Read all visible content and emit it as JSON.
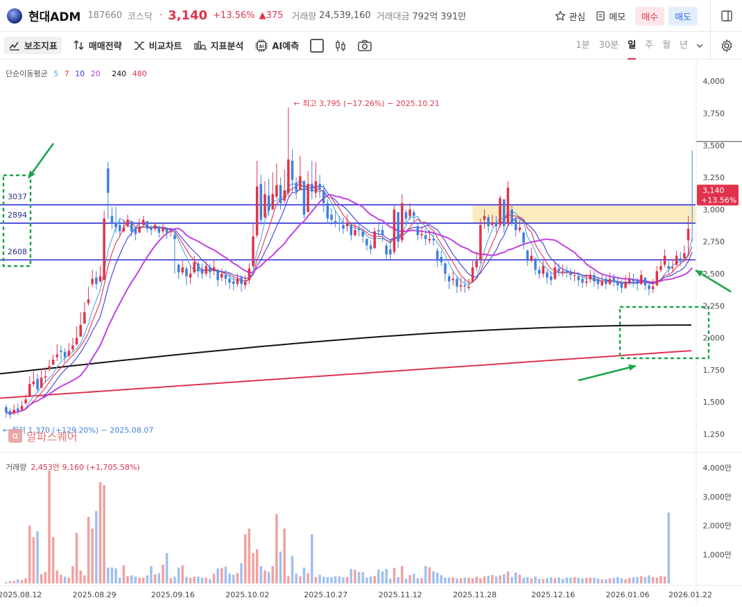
{
  "header": {
    "name": "현대ADM",
    "code": "187660",
    "market": "코스닥",
    "sep": "·",
    "price": "3,140",
    "change_pct": "+13.56%",
    "change_abs": "▲375",
    "volume_label": "거래량",
    "volume_value": "24,539,160",
    "value_label": "거래대금",
    "value_value": "792억 391만",
    "watch_label": "관심",
    "memo_label": "메모",
    "buy_label": "매수",
    "sell_label": "매도"
  },
  "toolbar": {
    "items": [
      "보조지표",
      "매매전략",
      "비교차트",
      "지표분석",
      "AI예측"
    ],
    "periods": [
      "1분",
      "30분",
      "일",
      "주",
      "월",
      "년"
    ],
    "active_period": "일"
  },
  "ma_legend": {
    "label": "단순이동평균",
    "items": [
      {
        "label": "5",
        "color": "#4aa8e0"
      },
      {
        "label": "7",
        "color": "#e0324b"
      },
      {
        "label": "10",
        "color": "#3a3adf"
      },
      {
        "label": "20",
        "color": "#c040e0"
      },
      {
        "label": "240",
        "color": "#111111"
      },
      {
        "label": "480",
        "color": "#e0324b"
      }
    ]
  },
  "volume_legend": {
    "label": "거래량",
    "value": "2,453만 9,160 (+1,705.58%)"
  },
  "watermark": "알파스퀘어",
  "watermark_icon": "α",
  "colors": {
    "up": "#e0324b",
    "down": "#3f7fe0",
    "vol_up": "#f2a0a0",
    "vol_down": "#9fc0f0",
    "hline": "#2a2ad6",
    "annotation": "#1aa34a",
    "zone": "#fbe9b8"
  },
  "chart_data": [
    {
      "type": "candlestick",
      "title": "",
      "x": [
        "2025.08.12",
        "2025.08.29",
        "2025.09.16",
        "2025.10.02",
        "2025.10.27",
        "2025.11.12",
        "2025.11.28",
        "2025.12.16",
        "2026.01.06",
        "2026.01.22"
      ],
      "y_ticks": [
        4000,
        3750,
        3500,
        3250,
        3000,
        2750,
        2500,
        2250,
        2000,
        1750,
        1500,
        1250
      ],
      "ylim": [
        1150,
        4120
      ],
      "price_levels": [
        3037,
        2894,
        2608
      ],
      "high_annotation": "최고 3,795 (−17.26%) − 2025.10.21",
      "low_annotation": "최저 1,370 (+129.20%) − 2025.08.07",
      "last_price_tag": "3,140",
      "last_change_tag": "+13.56%",
      "ma240_start": 1720,
      "ma240_end": 2100,
      "ma480_start": 1530,
      "ma480_end": 1900,
      "closes": [
        1420,
        1400,
        1440,
        1430,
        1470,
        1520,
        1640,
        1660,
        1600,
        1690,
        1700,
        1780,
        1830,
        1870,
        1890,
        1850,
        1900,
        1940,
        2000,
        2100,
        2200,
        2300,
        2460,
        2420,
        2480,
        2930,
        3130,
        2900,
        2860,
        2830,
        2860,
        2920,
        2830,
        2810,
        2870,
        2920,
        2850,
        2840,
        2880,
        2820,
        2860,
        2820,
        2830,
        2770,
        2510,
        2550,
        2480,
        2500,
        2590,
        2520,
        2500,
        2560,
        2510,
        2550,
        2450,
        2500,
        2460,
        2430,
        2420,
        2460,
        2420,
        2440,
        2540,
        2790,
        3180,
        2920,
        3120,
        2990,
        3120,
        3190,
        3050,
        3150,
        3390,
        3230,
        3140,
        3260,
        2960,
        3200,
        3140,
        3220,
        3160,
        3050,
        2930,
        2920,
        2900,
        2890,
        2850,
        2900,
        2800,
        2840,
        2840,
        2790,
        2720,
        2690,
        2830,
        2830,
        2800,
        2650,
        2650,
        3000,
        2750,
        3050,
        2930,
        3000,
        2950,
        2800,
        2810,
        2770,
        2770,
        2760,
        2600,
        2590,
        2500,
        2440,
        2460,
        2400,
        2410,
        2400,
        2400,
        2550,
        2600,
        2880,
        2950,
        2870,
        2900,
        2870,
        3090,
        2870,
        3170,
        2900,
        2840,
        2860,
        2740,
        2600,
        2640,
        2530,
        2500,
        2560,
        2470,
        2450,
        2550,
        2520,
        2520,
        2510,
        2490,
        2490,
        2450,
        2430,
        2440,
        2490,
        2440,
        2420,
        2440,
        2420,
        2460,
        2440,
        2410,
        2390,
        2430,
        2460,
        2440,
        2420,
        2490,
        2410,
        2380,
        2400,
        2520,
        2560,
        2640,
        2540,
        2550,
        2640,
        2600,
        2660,
        2850,
        3140
      ],
      "highs": [
        1480,
        1450,
        1480,
        1490,
        1510,
        1560,
        1700,
        1740,
        1720,
        1760,
        1770,
        1830,
        1870,
        1950,
        1940,
        1920,
        1960,
        2000,
        2090,
        2200,
        2280,
        2400,
        2530,
        2520,
        2560,
        2990,
        3370,
        3020,
        3020,
        2920,
        2920,
        2960,
        2900,
        2870,
        2930,
        2950,
        2900,
        2880,
        2900,
        2860,
        2900,
        2860,
        2860,
        2830,
        2580,
        2600,
        2560,
        2560,
        2640,
        2600,
        2580,
        2600,
        2580,
        2610,
        2540,
        2540,
        2530,
        2500,
        2480,
        2500,
        2490,
        2490,
        2580,
        2900,
        3380,
        3270,
        3220,
        3240,
        3290,
        3360,
        3250,
        3310,
        3795,
        3470,
        3250,
        3420,
        3230,
        3300,
        3380,
        3370,
        3270,
        3200,
        3080,
        3010,
        2990,
        2950,
        2940,
        2960,
        2890,
        2890,
        2890,
        2850,
        2780,
        2760,
        2860,
        2890,
        2880,
        2740,
        2770,
        3030,
        2880,
        3120,
        3000,
        3050,
        3000,
        2890,
        2870,
        2850,
        2840,
        2820,
        2700,
        2680,
        2590,
        2500,
        2520,
        2480,
        2470,
        2460,
        2460,
        2600,
        2670,
        2930,
        3000,
        2960,
        2960,
        2950,
        3110,
        2990,
        3220,
        3030,
        2930,
        2920,
        2830,
        2690,
        2700,
        2620,
        2560,
        2600,
        2530,
        2520,
        2590,
        2580,
        2570,
        2560,
        2540,
        2530,
        2510,
        2490,
        2500,
        2530,
        2520,
        2480,
        2490,
        2480,
        2510,
        2500,
        2470,
        2450,
        2490,
        2510,
        2500,
        2470,
        2530,
        2470,
        2430,
        2460,
        2560,
        2610,
        2690,
        2600,
        2610,
        2680,
        2670,
        2720,
        2950,
        3460
      ],
      "lows": [
        1380,
        1370,
        1400,
        1400,
        1430,
        1480,
        1600,
        1620,
        1570,
        1650,
        1650,
        1740,
        1790,
        1820,
        1830,
        1810,
        1850,
        1890,
        1940,
        2030,
        2150,
        2250,
        2400,
        2380,
        2430,
        2860,
        2930,
        2850,
        2820,
        2790,
        2820,
        2860,
        2790,
        2760,
        2820,
        2860,
        2820,
        2800,
        2830,
        2780,
        2810,
        2770,
        2790,
        2500,
        2460,
        2490,
        2410,
        2420,
        2500,
        2470,
        2460,
        2480,
        2460,
        2490,
        2400,
        2440,
        2410,
        2380,
        2370,
        2400,
        2360,
        2380,
        2420,
        2550,
        2780,
        2880,
        2930,
        2950,
        3000,
        3080,
        3000,
        3050,
        3100,
        3140,
        3080,
        3150,
        2930,
        3050,
        3080,
        3090,
        3090,
        2980,
        2890,
        2880,
        2860,
        2830,
        2810,
        2830,
        2760,
        2790,
        2790,
        2740,
        2680,
        2650,
        2690,
        2790,
        2750,
        2610,
        2610,
        2650,
        2700,
        2740,
        2880,
        2920,
        2910,
        2760,
        2770,
        2720,
        2730,
        2720,
        2550,
        2560,
        2440,
        2380,
        2410,
        2350,
        2360,
        2350,
        2370,
        2430,
        2520,
        2580,
        2850,
        2820,
        2860,
        2820,
        2860,
        2820,
        2870,
        2870,
        2790,
        2820,
        2690,
        2560,
        2590,
        2490,
        2460,
        2470,
        2420,
        2410,
        2450,
        2480,
        2480,
        2470,
        2450,
        2440,
        2400,
        2390,
        2400,
        2430,
        2400,
        2380,
        2400,
        2380,
        2410,
        2400,
        2370,
        2350,
        2380,
        2410,
        2400,
        2370,
        2410,
        2370,
        2330,
        2350,
        2400,
        2510,
        2550,
        2500,
        2510,
        2560,
        2560,
        2600,
        2640,
        2750
      ],
      "opens": [
        1460,
        1430,
        1410,
        1450,
        1440,
        1490,
        1540,
        1640,
        1680,
        1610,
        1690,
        1760,
        1790,
        1850,
        1900,
        1890,
        1860,
        1910,
        1950,
        2010,
        2110,
        2270,
        2420,
        2470,
        2440,
        2450,
        3320,
        2950,
        2900,
        2880,
        2830,
        2870,
        2910,
        2850,
        2820,
        2880,
        2910,
        2860,
        2850,
        2870,
        2830,
        2850,
        2830,
        2800,
        2570,
        2510,
        2540,
        2470,
        2510,
        2580,
        2540,
        2500,
        2550,
        2520,
        2530,
        2470,
        2490,
        2460,
        2440,
        2420,
        2470,
        2410,
        2450,
        2560,
        2800,
        3200,
        2940,
        3110,
        3000,
        3100,
        3190,
        3070,
        3130,
        3380,
        3210,
        3150,
        3220,
        2980,
        3200,
        3130,
        3200,
        3140,
        3050,
        2960,
        2910,
        2900,
        2880,
        2870,
        2880,
        2800,
        2850,
        2830,
        2770,
        2720,
        2700,
        2840,
        2840,
        2720,
        2690,
        2670,
        2980,
        2760,
        2980,
        2950,
        2980,
        2870,
        2800,
        2800,
        2760,
        2770,
        2680,
        2630,
        2580,
        2480,
        2450,
        2460,
        2400,
        2410,
        2390,
        2440,
        2550,
        2610,
        2920,
        2940,
        2880,
        2900,
        2880,
        3080,
        2890,
        3000,
        2920,
        2840,
        2820,
        2680,
        2600,
        2620,
        2530,
        2500,
        2510,
        2480,
        2460,
        2540,
        2520,
        2520,
        2500,
        2490,
        2480,
        2460,
        2430,
        2460,
        2490,
        2460,
        2410,
        2460,
        2420,
        2470,
        2440,
        2430,
        2390,
        2430,
        2460,
        2450,
        2420,
        2470,
        2410,
        2380,
        2410,
        2530,
        2570,
        2560,
        2540,
        2570,
        2620,
        2620,
        2760
      ]
    },
    {
      "type": "bar",
      "title": "",
      "y_ticks": [
        4000,
        3000,
        2000,
        1000
      ],
      "y_unit": "만",
      "ylim": [
        0,
        4000
      ],
      "values": [
        40,
        80,
        90,
        140,
        110,
        180,
        2000,
        1600,
        1800,
        320,
        400,
        3900,
        1600,
        450,
        300,
        230,
        200,
        600,
        1750,
        450,
        280,
        2300,
        1900,
        2500,
        3500,
        3400,
        550,
        550,
        520,
        200,
        620,
        260,
        280,
        240,
        200,
        200,
        280,
        600,
        320,
        350,
        650,
        1050,
        180,
        230,
        550,
        630,
        230,
        200,
        240,
        240,
        200,
        200,
        150,
        340,
        520,
        540,
        580,
        340,
        300,
        360,
        700,
        1700,
        1900,
        1050,
        1180,
        600,
        450,
        400,
        600,
        2400,
        1100,
        1900,
        250,
        950,
        340,
        250,
        550,
        350,
        1700,
        220,
        300,
        230,
        220,
        220,
        250,
        240,
        210,
        220,
        500,
        480,
        400,
        390,
        200,
        240,
        260,
        480,
        420,
        500,
        160,
        540,
        220,
        600,
        160,
        290,
        330,
        180,
        180,
        600,
        560,
        420,
        370,
        290,
        200,
        200,
        210,
        170,
        180,
        200,
        200,
        180,
        230,
        180,
        240,
        270,
        290,
        240,
        280,
        320,
        410,
        230,
        380,
        300,
        200,
        220,
        180,
        240,
        160,
        150,
        180,
        210,
        180,
        210,
        160,
        210,
        200,
        220,
        200,
        170,
        190,
        200,
        200,
        170,
        140,
        150,
        180,
        200,
        220,
        180,
        140,
        190,
        210,
        220,
        250,
        220,
        280,
        220,
        200,
        250,
        240,
        2450
      ],
      "up": [
        1,
        0,
        1,
        0,
        1,
        1,
        1,
        1,
        0,
        1,
        1,
        1,
        1,
        1,
        1,
        0,
        1,
        1,
        1,
        1,
        1,
        1,
        1,
        0,
        1,
        1,
        0,
        0,
        0,
        0,
        1,
        1,
        0,
        0,
        1,
        1,
        0,
        0,
        1,
        0,
        1,
        0,
        1,
        0,
        0,
        1,
        0,
        1,
        1,
        0,
        0,
        1,
        0,
        1,
        0,
        1,
        0,
        0,
        0,
        1,
        0,
        1,
        1,
        1,
        1,
        0,
        1,
        0,
        1,
        1,
        0,
        1,
        1,
        0,
        0,
        1,
        0,
        1,
        0,
        1,
        0,
        0,
        0,
        0,
        0,
        0,
        0,
        1,
        0,
        1,
        0,
        0,
        0,
        0,
        1,
        0,
        0,
        0,
        0,
        1,
        0,
        1,
        0,
        1,
        0,
        0,
        1,
        0,
        1,
        0,
        0,
        0,
        0,
        0,
        1,
        0,
        1,
        0,
        1,
        1,
        1,
        1,
        1,
        0,
        1,
        0,
        1,
        0,
        1,
        0,
        0,
        1,
        0,
        0,
        1,
        0,
        0,
        1,
        0,
        0,
        1,
        0,
        0,
        0,
        0,
        1,
        0,
        0,
        1,
        1,
        0,
        0,
        1,
        0,
        1,
        0,
        0,
        0,
        1,
        1,
        0,
        0,
        1,
        0,
        0,
        1,
        1,
        1,
        1,
        0,
        1,
        1,
        0,
        1,
        1,
        1
      ]
    }
  ]
}
